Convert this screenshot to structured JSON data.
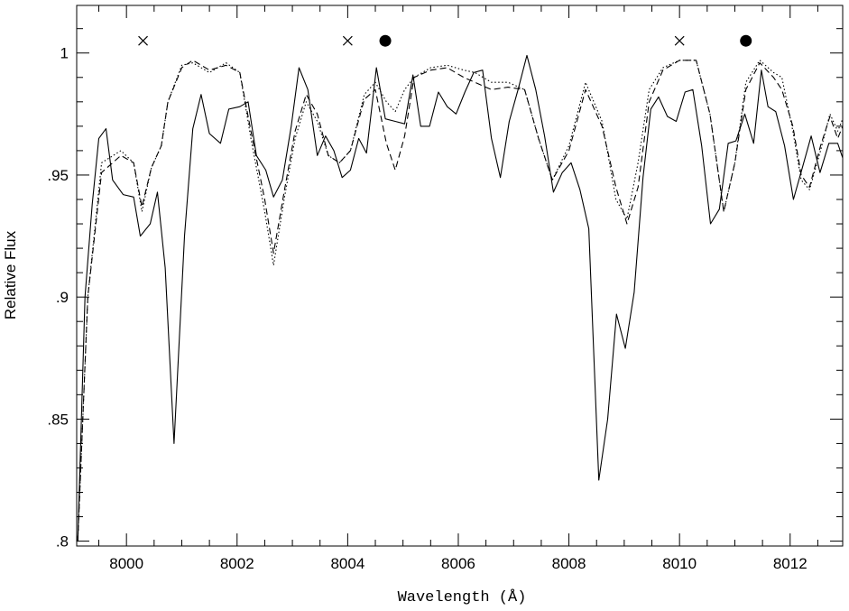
{
  "chart_data": {
    "type": "line",
    "xlabel": "Wavelength (Å)",
    "ylabel": "Relative Flux",
    "xlim": [
      7999.1,
      8012.95
    ],
    "ylim": [
      0.798,
      1.0195
    ],
    "grid": false,
    "x_ticks": [
      {
        "value": 8000,
        "label": "8000"
      },
      {
        "value": 8002,
        "label": "8002"
      },
      {
        "value": 8004,
        "label": "8004"
      },
      {
        "value": 8006,
        "label": "8006"
      },
      {
        "value": 8008,
        "label": "8008"
      },
      {
        "value": 8010,
        "label": "8010"
      },
      {
        "value": 8012,
        "label": "8012"
      }
    ],
    "y_ticks": [
      {
        "value": 0.8,
        "label": ".8"
      },
      {
        "value": 0.85,
        "label": ".85"
      },
      {
        "value": 0.9,
        "label": ".9"
      },
      {
        "value": 0.95,
        "label": ".95"
      },
      {
        "value": 1.0,
        "label": "1"
      }
    ],
    "markers": [
      {
        "symbol": "cross",
        "x": 8000.3,
        "y": 1.005
      },
      {
        "symbol": "cross",
        "x": 8004.0,
        "y": 1.005
      },
      {
        "symbol": "dot",
        "x": 8004.68,
        "y": 1.005
      },
      {
        "symbol": "cross",
        "x": 8010.0,
        "y": 1.005
      },
      {
        "symbol": "dot",
        "x": 8011.2,
        "y": 1.005
      }
    ],
    "series": [
      {
        "style": "solid",
        "points": [
          [
            7999.12,
            0.8
          ],
          [
            7999.25,
            0.9
          ],
          [
            7999.38,
            0.938
          ],
          [
            7999.5,
            0.965
          ],
          [
            7999.63,
            0.969
          ],
          [
            7999.75,
            0.948
          ],
          [
            7999.94,
            0.942
          ],
          [
            8000.13,
            0.941
          ],
          [
            8000.25,
            0.925
          ],
          [
            8000.43,
            0.93
          ],
          [
            8000.56,
            0.943
          ],
          [
            8000.7,
            0.912
          ],
          [
            8000.86,
            0.84
          ],
          [
            8001.05,
            0.925
          ],
          [
            8001.2,
            0.969
          ],
          [
            8001.35,
            0.983
          ],
          [
            8001.5,
            0.967
          ],
          [
            8001.7,
            0.963
          ],
          [
            8001.85,
            0.977
          ],
          [
            8002.05,
            0.978
          ],
          [
            8002.2,
            0.98
          ],
          [
            8002.35,
            0.958
          ],
          [
            8002.52,
            0.952
          ],
          [
            8002.66,
            0.941
          ],
          [
            8002.82,
            0.948
          ],
          [
            8002.98,
            0.97
          ],
          [
            8003.12,
            0.994
          ],
          [
            8003.28,
            0.985
          ],
          [
            8003.45,
            0.958
          ],
          [
            8003.6,
            0.966
          ],
          [
            8003.75,
            0.96
          ],
          [
            8003.9,
            0.949
          ],
          [
            8004.05,
            0.952
          ],
          [
            8004.2,
            0.965
          ],
          [
            8004.34,
            0.959
          ],
          [
            8004.52,
            0.994
          ],
          [
            8004.68,
            0.973
          ],
          [
            8004.86,
            0.972
          ],
          [
            8005.03,
            0.971
          ],
          [
            8005.18,
            0.991
          ],
          [
            8005.32,
            0.97
          ],
          [
            8005.48,
            0.97
          ],
          [
            8005.64,
            0.984
          ],
          [
            8005.8,
            0.978
          ],
          [
            8005.96,
            0.975
          ],
          [
            8006.12,
            0.984
          ],
          [
            8006.28,
            0.992
          ],
          [
            8006.44,
            0.993
          ],
          [
            8006.6,
            0.965
          ],
          [
            8006.76,
            0.949
          ],
          [
            8006.92,
            0.972
          ],
          [
            8007.08,
            0.985
          ],
          [
            8007.24,
            0.999
          ],
          [
            8007.4,
            0.985
          ],
          [
            8007.56,
            0.966
          ],
          [
            8007.72,
            0.943
          ],
          [
            8007.88,
            0.951
          ],
          [
            8008.04,
            0.955
          ],
          [
            8008.2,
            0.944
          ],
          [
            8008.36,
            0.928
          ],
          [
            8008.54,
            0.825
          ],
          [
            8008.7,
            0.85
          ],
          [
            8008.86,
            0.893
          ],
          [
            8009.02,
            0.879
          ],
          [
            8009.18,
            0.902
          ],
          [
            8009.34,
            0.949
          ],
          [
            8009.48,
            0.977
          ],
          [
            8009.62,
            0.982
          ],
          [
            8009.78,
            0.974
          ],
          [
            8009.94,
            0.972
          ],
          [
            8010.1,
            0.984
          ],
          [
            8010.24,
            0.985
          ],
          [
            8010.4,
            0.962
          ],
          [
            8010.56,
            0.93
          ],
          [
            8010.72,
            0.936
          ],
          [
            8010.88,
            0.963
          ],
          [
            8011.02,
            0.964
          ],
          [
            8011.18,
            0.975
          ],
          [
            8011.34,
            0.963
          ],
          [
            8011.48,
            0.993
          ],
          [
            8011.6,
            0.978
          ],
          [
            8011.74,
            0.976
          ],
          [
            8011.9,
            0.962
          ],
          [
            8012.06,
            0.94
          ],
          [
            8012.22,
            0.953
          ],
          [
            8012.38,
            0.966
          ],
          [
            8012.54,
            0.951
          ],
          [
            8012.7,
            0.963
          ],
          [
            8012.86,
            0.963
          ],
          [
            8012.95,
            0.957
          ]
        ]
      },
      {
        "style": "dashed",
        "points": [
          [
            7999.12,
            0.8
          ],
          [
            7999.3,
            0.9
          ],
          [
            7999.55,
            0.951
          ],
          [
            7999.9,
            0.958
          ],
          [
            8000.13,
            0.955
          ],
          [
            8000.28,
            0.937
          ],
          [
            8000.45,
            0.953
          ],
          [
            8000.63,
            0.962
          ],
          [
            8000.75,
            0.98
          ],
          [
            8001.0,
            0.994
          ],
          [
            8001.2,
            0.997
          ],
          [
            8001.5,
            0.993
          ],
          [
            8001.8,
            0.995
          ],
          [
            8002.05,
            0.992
          ],
          [
            8002.25,
            0.968
          ],
          [
            8002.5,
            0.94
          ],
          [
            8002.66,
            0.918
          ],
          [
            8002.85,
            0.943
          ],
          [
            8003.05,
            0.968
          ],
          [
            8003.25,
            0.983
          ],
          [
            8003.45,
            0.975
          ],
          [
            8003.65,
            0.958
          ],
          [
            8003.85,
            0.955
          ],
          [
            8004.05,
            0.96
          ],
          [
            8004.3,
            0.981
          ],
          [
            8004.5,
            0.985
          ],
          [
            8004.7,
            0.963
          ],
          [
            8004.86,
            0.952
          ],
          [
            8005.03,
            0.966
          ],
          [
            8005.2,
            0.99
          ],
          [
            8005.5,
            0.993
          ],
          [
            8005.8,
            0.994
          ],
          [
            8006.1,
            0.99
          ],
          [
            8006.3,
            0.988
          ],
          [
            8006.6,
            0.985
          ],
          [
            8006.9,
            0.986
          ],
          [
            8007.2,
            0.985
          ],
          [
            8007.45,
            0.965
          ],
          [
            8007.7,
            0.948
          ],
          [
            8008.0,
            0.96
          ],
          [
            8008.3,
            0.985
          ],
          [
            8008.6,
            0.97
          ],
          [
            8008.85,
            0.945
          ],
          [
            8009.05,
            0.93
          ],
          [
            8009.25,
            0.945
          ],
          [
            8009.45,
            0.98
          ],
          [
            8009.7,
            0.993
          ],
          [
            8010.0,
            0.997
          ],
          [
            8010.3,
            0.997
          ],
          [
            8010.55,
            0.975
          ],
          [
            8010.8,
            0.935
          ],
          [
            8011.0,
            0.955
          ],
          [
            8011.2,
            0.985
          ],
          [
            8011.45,
            0.996
          ],
          [
            8011.7,
            0.99
          ],
          [
            8011.85,
            0.985
          ],
          [
            8012.05,
            0.97
          ],
          [
            8012.2,
            0.95
          ],
          [
            8012.35,
            0.945
          ],
          [
            8012.55,
            0.962
          ],
          [
            8012.72,
            0.974
          ],
          [
            8012.86,
            0.965
          ],
          [
            8012.95,
            0.97
          ]
        ]
      },
      {
        "style": "dotted",
        "points": [
          [
            7999.12,
            0.8
          ],
          [
            7999.3,
            0.9
          ],
          [
            7999.55,
            0.955
          ],
          [
            7999.9,
            0.96
          ],
          [
            8000.13,
            0.955
          ],
          [
            8000.28,
            0.935
          ],
          [
            8000.45,
            0.953
          ],
          [
            8000.63,
            0.962
          ],
          [
            8000.75,
            0.98
          ],
          [
            8001.0,
            0.995
          ],
          [
            8001.2,
            0.996
          ],
          [
            8001.5,
            0.992
          ],
          [
            8001.8,
            0.996
          ],
          [
            8002.05,
            0.992
          ],
          [
            8002.25,
            0.965
          ],
          [
            8002.5,
            0.935
          ],
          [
            8002.66,
            0.913
          ],
          [
            8002.85,
            0.94
          ],
          [
            8003.05,
            0.965
          ],
          [
            8003.25,
            0.98
          ],
          [
            8003.45,
            0.972
          ],
          [
            8003.65,
            0.958
          ],
          [
            8003.85,
            0.955
          ],
          [
            8004.05,
            0.96
          ],
          [
            8004.3,
            0.983
          ],
          [
            8004.5,
            0.988
          ],
          [
            8004.7,
            0.98
          ],
          [
            8004.86,
            0.976
          ],
          [
            8005.03,
            0.985
          ],
          [
            8005.2,
            0.99
          ],
          [
            8005.5,
            0.994
          ],
          [
            8005.8,
            0.995
          ],
          [
            8006.1,
            0.993
          ],
          [
            8006.3,
            0.992
          ],
          [
            8006.6,
            0.988
          ],
          [
            8006.9,
            0.988
          ],
          [
            8007.2,
            0.985
          ],
          [
            8007.45,
            0.965
          ],
          [
            8007.7,
            0.948
          ],
          [
            8008.0,
            0.962
          ],
          [
            8008.3,
            0.988
          ],
          [
            8008.6,
            0.972
          ],
          [
            8008.85,
            0.94
          ],
          [
            8009.05,
            0.932
          ],
          [
            8009.25,
            0.955
          ],
          [
            8009.45,
            0.985
          ],
          [
            8009.7,
            0.994
          ],
          [
            8010.0,
            0.997
          ],
          [
            8010.3,
            0.997
          ],
          [
            8010.55,
            0.975
          ],
          [
            8010.8,
            0.935
          ],
          [
            8011.0,
            0.955
          ],
          [
            8011.2,
            0.988
          ],
          [
            8011.45,
            0.997
          ],
          [
            8011.7,
            0.992
          ],
          [
            8011.85,
            0.99
          ],
          [
            8012.05,
            0.968
          ],
          [
            8012.2,
            0.948
          ],
          [
            8012.35,
            0.944
          ],
          [
            8012.55,
            0.96
          ],
          [
            8012.72,
            0.975
          ],
          [
            8012.86,
            0.968
          ],
          [
            8012.95,
            0.973
          ]
        ]
      }
    ]
  }
}
